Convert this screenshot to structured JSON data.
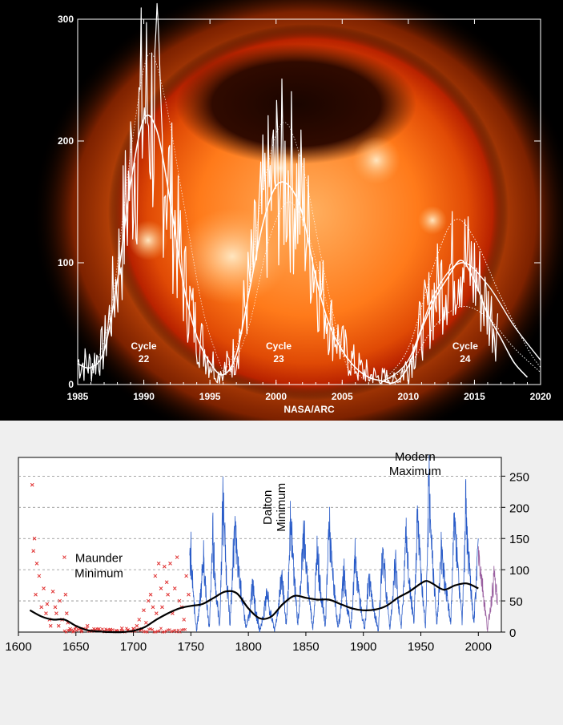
{
  "chart_data": [
    {
      "type": "line",
      "title": "",
      "xlabel": "NASA/ARC",
      "ylabel": "",
      "xlim": [
        1985,
        2020
      ],
      "ylim": [
        0,
        300
      ],
      "x_ticks": [
        "1985",
        "1990",
        "1995",
        "2000",
        "2005",
        "2010",
        "2015",
        "2020"
      ],
      "y_ticks": [
        "0",
        "100",
        "200",
        "300"
      ],
      "grid": false,
      "annotations": [
        {
          "text": "Cycle",
          "sub": "22",
          "x": 1990,
          "y": 17
        },
        {
          "text": "Cycle",
          "sub": "23",
          "x": 2000.2,
          "y": 17
        },
        {
          "text": "Cycle",
          "sub": "24",
          "x": 2014.3,
          "y": 17
        }
      ],
      "background_colors": {
        "sun_core": "#ffb060",
        "sun_mid": "#ff6a10",
        "sun_edge": "#b82200",
        "space": "#000000"
      },
      "series_colors": {
        "raw": "#ffffff",
        "smoothed": "#ffffff",
        "prediction": "#ffffff"
      },
      "smoothed": [
        [
          1985,
          17
        ],
        [
          1986,
          14
        ],
        [
          1987,
          28
        ],
        [
          1988,
          85
        ],
        [
          1989,
          165
        ],
        [
          1990,
          218
        ],
        [
          1991,
          208
        ],
        [
          1992,
          150
        ],
        [
          1993,
          82
        ],
        [
          1994,
          40
        ],
        [
          1995,
          18
        ],
        [
          1996,
          8
        ],
        [
          1997,
          25
        ],
        [
          1998,
          78
        ],
        [
          1999,
          132
        ],
        [
          2000,
          163
        ],
        [
          2001,
          163
        ],
        [
          2002,
          140
        ],
        [
          2003,
          88
        ],
        [
          2004,
          50
        ],
        [
          2005,
          28
        ],
        [
          2006,
          14
        ],
        [
          2007,
          6
        ],
        [
          2008,
          3
        ],
        [
          2009,
          2
        ],
        [
          2010,
          15
        ],
        [
          2011,
          45
        ],
        [
          2012,
          70
        ],
        [
          2013,
          88
        ],
        [
          2014,
          102
        ],
        [
          2015,
          85
        ],
        [
          2016,
          58
        ],
        [
          2017,
          38
        ],
        [
          2018,
          18
        ],
        [
          2019,
          6
        ]
      ],
      "prediction_high": [
        [
          2008,
          2
        ],
        [
          2010,
          30
        ],
        [
          2012,
          100
        ],
        [
          2013.5,
          135
        ],
        [
          2015,
          120
        ],
        [
          2017,
          72
        ],
        [
          2019,
          30
        ],
        [
          2020,
          14
        ]
      ],
      "prediction_low": [
        [
          2008,
          2
        ],
        [
          2010,
          15
        ],
        [
          2012,
          48
        ],
        [
          2014,
          64
        ],
        [
          2016,
          55
        ],
        [
          2018,
          30
        ],
        [
          2020,
          10
        ]
      ],
      "prediction_mid": [
        [
          2008,
          2
        ],
        [
          2010,
          20
        ],
        [
          2012,
          75
        ],
        [
          2014,
          100
        ],
        [
          2016,
          82
        ],
        [
          2018,
          48
        ],
        [
          2020,
          20
        ]
      ],
      "cycle22_envelope": [
        [
          1986,
          5
        ],
        [
          1987.5,
          60
        ],
        [
          1989,
          190
        ],
        [
          1990.3,
          270
        ],
        [
          1991.5,
          240
        ],
        [
          1993,
          150
        ],
        [
          1994.5,
          60
        ],
        [
          1996,
          10
        ]
      ],
      "cycle23_envelope": [
        [
          1996,
          8
        ],
        [
          1997.5,
          50
        ],
        [
          1999,
          160
        ],
        [
          2000.5,
          215
        ],
        [
          2002,
          180
        ],
        [
          2003.5,
          100
        ],
        [
          2005,
          30
        ],
        [
          2006.5,
          5
        ]
      ],
      "cycle23_low": [
        [
          1996.5,
          8
        ],
        [
          1998,
          50
        ],
        [
          1999.5,
          120
        ],
        [
          2001,
          150
        ],
        [
          2002.5,
          120
        ],
        [
          2004,
          60
        ],
        [
          2005.5,
          10
        ]
      ]
    },
    {
      "type": "line",
      "title": "",
      "xlabel": "",
      "ylabel": "",
      "xlim": [
        1600,
        2020
      ],
      "ylim": [
        0,
        280
      ],
      "x_ticks": [
        "1600",
        "1650",
        "1700",
        "1750",
        "1800",
        "1850",
        "1900",
        "1950",
        "2000"
      ],
      "y_ticks": [
        "0",
        "50",
        "100",
        "150",
        "200",
        "250"
      ],
      "grid": true,
      "annotations": [
        {
          "lines": [
            "Maunder",
            "Minimum"
          ],
          "x": 1670,
          "y": 110
        },
        {
          "lines": [
            "Dalton",
            "Minimum"
          ],
          "x": 1820,
          "y": 200,
          "rotated": true
        },
        {
          "lines": [
            "Modern",
            "Maximum"
          ],
          "x": 1945,
          "y": 262
        }
      ],
      "series_colors": {
        "monthly": "#2a5cc8",
        "early_obs": "#e03030",
        "recent": "#9a60a0",
        "trend": "#000000"
      },
      "early_observations": [
        [
          1612,
          236
        ],
        [
          1613,
          130
        ],
        [
          1614,
          150
        ],
        [
          1615,
          60
        ],
        [
          1616,
          110
        ],
        [
          1618,
          90
        ],
        [
          1620,
          40
        ],
        [
          1622,
          70
        ],
        [
          1624,
          30
        ],
        [
          1625,
          45
        ],
        [
          1627,
          20
        ],
        [
          1628,
          10
        ],
        [
          1630,
          65
        ],
        [
          1632,
          40
        ],
        [
          1633,
          30
        ],
        [
          1635,
          10
        ],
        [
          1636,
          50
        ],
        [
          1638,
          20
        ],
        [
          1640,
          120
        ],
        [
          1641,
          60
        ],
        [
          1642,
          30
        ],
        [
          1643,
          15
        ],
        [
          1645,
          5
        ],
        [
          1648,
          2
        ],
        [
          1650,
          8
        ],
        [
          1655,
          3
        ],
        [
          1660,
          10
        ],
        [
          1665,
          2
        ],
        [
          1670,
          5
        ],
        [
          1675,
          1
        ],
        [
          1680,
          4
        ],
        [
          1685,
          2
        ],
        [
          1690,
          6
        ],
        [
          1695,
          3
        ],
        [
          1700,
          5
        ],
        [
          1703,
          10
        ],
        [
          1705,
          20
        ],
        [
          1707,
          5
        ],
        [
          1709,
          35
        ],
        [
          1711,
          15
        ],
        [
          1713,
          50
        ],
        [
          1715,
          60
        ],
        [
          1717,
          40
        ],
        [
          1719,
          90
        ],
        [
          1720,
          30
        ],
        [
          1722,
          110
        ],
        [
          1724,
          70
        ],
        [
          1725,
          40
        ],
        [
          1727,
          105
        ],
        [
          1729,
          80
        ],
        [
          1730,
          60
        ],
        [
          1732,
          110
        ],
        [
          1734,
          30
        ],
        [
          1736,
          70
        ],
        [
          1738,
          120
        ],
        [
          1740,
          50
        ],
        [
          1742,
          40
        ],
        [
          1744,
          20
        ],
        [
          1746,
          90
        ],
        [
          1748,
          60
        ]
      ],
      "cycle_peaks": [
        [
          1750,
          83
        ],
        [
          1761,
          86
        ],
        [
          1769,
          106
        ],
        [
          1778,
          154
        ],
        [
          1788,
          131
        ],
        [
          1804,
          47
        ],
        [
          1816,
          46
        ],
        [
          1829,
          71
        ],
        [
          1837,
          138
        ],
        [
          1848,
          124
        ],
        [
          1860,
          95
        ],
        [
          1870,
          139
        ],
        [
          1883,
          63
        ],
        [
          1893,
          85
        ],
        [
          1905,
          64
        ],
        [
          1917,
          104
        ],
        [
          1928,
          78
        ],
        [
          1937,
          114
        ],
        [
          1947,
          151
        ],
        [
          1957,
          190
        ],
        [
          1968,
          106
        ],
        [
          1979,
          155
        ],
        [
          1989,
          158
        ],
        [
          2000,
          120
        ],
        [
          2014,
          82
        ]
      ],
      "cycle_peak_spikes": [
        [
          1750,
          140
        ],
        [
          1761,
          150
        ],
        [
          1769,
          180
        ],
        [
          1778,
          238
        ],
        [
          1788,
          190
        ],
        [
          1804,
          100
        ],
        [
          1816,
          80
        ],
        [
          1829,
          120
        ],
        [
          1837,
          206
        ],
        [
          1848,
          190
        ],
        [
          1860,
          160
        ],
        [
          1870,
          185
        ],
        [
          1883,
          120
        ],
        [
          1893,
          150
        ],
        [
          1905,
          110
        ],
        [
          1917,
          155
        ],
        [
          1928,
          140
        ],
        [
          1937,
          170
        ],
        [
          1947,
          200
        ],
        [
          1957,
          253
        ],
        [
          1968,
          155
        ],
        [
          1979,
          195
        ],
        [
          1989,
          200
        ],
        [
          2000,
          150
        ]
      ],
      "cycle_minima": [
        [
          1755,
          2
        ],
        [
          1766,
          5
        ],
        [
          1775,
          7
        ],
        [
          1784,
          10
        ],
        [
          1798,
          4
        ],
        [
          1810,
          0
        ],
        [
          1823,
          1
        ],
        [
          1833,
          8
        ],
        [
          1843,
          10
        ],
        [
          1856,
          4
        ],
        [
          1867,
          7
        ],
        [
          1878,
          3
        ],
        [
          1889,
          6
        ],
        [
          1901,
          3
        ],
        [
          1913,
          1
        ],
        [
          1923,
          6
        ],
        [
          1933,
          6
        ],
        [
          1944,
          10
        ],
        [
          1954,
          4
        ],
        [
          1964,
          10
        ],
        [
          1976,
          12
        ],
        [
          1986,
          13
        ],
        [
          1996,
          9
        ],
        [
          2008,
          2
        ],
        [
          2019,
          2
        ]
      ],
      "trend": [
        [
          1610,
          35
        ],
        [
          1620,
          25
        ],
        [
          1630,
          20
        ],
        [
          1640,
          20
        ],
        [
          1650,
          10
        ],
        [
          1660,
          3
        ],
        [
          1670,
          1
        ],
        [
          1680,
          0
        ],
        [
          1690,
          0
        ],
        [
          1700,
          2
        ],
        [
          1710,
          8
        ],
        [
          1720,
          20
        ],
        [
          1730,
          30
        ],
        [
          1740,
          38
        ],
        [
          1750,
          42
        ],
        [
          1760,
          45
        ],
        [
          1770,
          55
        ],
        [
          1780,
          65
        ],
        [
          1790,
          62
        ],
        [
          1800,
          38
        ],
        [
          1810,
          22
        ],
        [
          1820,
          25
        ],
        [
          1830,
          45
        ],
        [
          1840,
          58
        ],
        [
          1850,
          55
        ],
        [
          1860,
          52
        ],
        [
          1870,
          52
        ],
        [
          1880,
          45
        ],
        [
          1890,
          38
        ],
        [
          1900,
          35
        ],
        [
          1910,
          36
        ],
        [
          1920,
          42
        ],
        [
          1930,
          55
        ],
        [
          1940,
          65
        ],
        [
          1950,
          78
        ],
        [
          1955,
          82
        ],
        [
          1960,
          78
        ],
        [
          1970,
          68
        ],
        [
          1980,
          75
        ],
        [
          1990,
          78
        ],
        [
          2000,
          70
        ]
      ]
    }
  ]
}
